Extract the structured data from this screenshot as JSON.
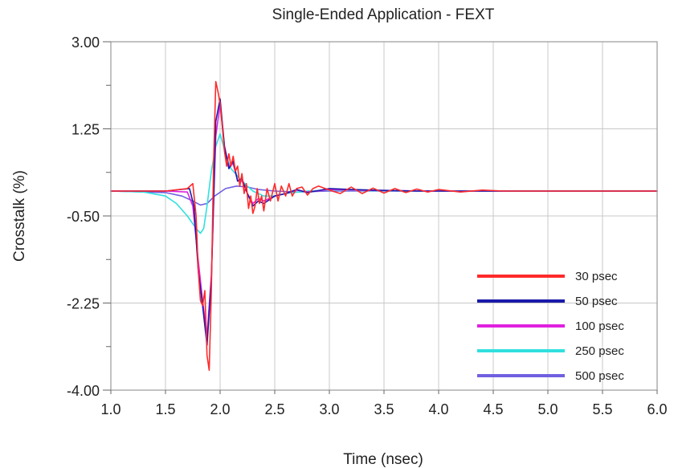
{
  "chart_data": {
    "type": "line",
    "title": "Single-Ended Application - FEXT",
    "xlabel": "Time (nsec)",
    "ylabel": "Crosstalk (%)",
    "xlim": [
      1.0,
      6.0
    ],
    "ylim": [
      -4.0,
      3.0
    ],
    "xticks": [
      "1.0",
      "1.5",
      "2.0",
      "2.5",
      "3.0",
      "3.5",
      "4.0",
      "4.5",
      "5.0",
      "5.5",
      "6.0"
    ],
    "yticks": [
      "3.00",
      "1.25",
      "-0.50",
      "-2.25",
      "-4.00"
    ],
    "grid": true,
    "legend_position": "bottom-right",
    "series": [
      {
        "name": "30 psec",
        "color": "#ff2a2a",
        "x": [
          1.0,
          1.5,
          1.7,
          1.75,
          1.78,
          1.8,
          1.82,
          1.84,
          1.86,
          1.88,
          1.9,
          1.92,
          1.94,
          1.96,
          1.98,
          2.0,
          2.02,
          2.04,
          2.06,
          2.08,
          2.1,
          2.12,
          2.14,
          2.16,
          2.18,
          2.2,
          2.22,
          2.24,
          2.26,
          2.28,
          2.3,
          2.32,
          2.34,
          2.36,
          2.38,
          2.4,
          2.43,
          2.46,
          2.5,
          2.53,
          2.56,
          2.6,
          2.63,
          2.66,
          2.7,
          2.75,
          2.8,
          2.85,
          2.9,
          3.0,
          3.1,
          3.2,
          3.3,
          3.4,
          3.5,
          3.6,
          3.7,
          3.8,
          3.9,
          4.0,
          4.2,
          4.4,
          4.6,
          5.0,
          5.5,
          6.0
        ],
        "y": [
          0.0,
          0.0,
          0.05,
          0.15,
          -0.5,
          -1.6,
          -2.2,
          -2.3,
          -2.0,
          -3.3,
          -3.6,
          -2.0,
          0.5,
          2.2,
          2.0,
          1.75,
          1.3,
          0.8,
          0.5,
          0.75,
          0.5,
          0.7,
          0.4,
          0.5,
          0.1,
          0.35,
          -0.05,
          0.15,
          -0.35,
          -0.1,
          -0.45,
          -0.3,
          0.05,
          -0.25,
          -0.1,
          -0.4,
          0.05,
          -0.2,
          0.15,
          -0.2,
          0.1,
          -0.1,
          0.15,
          -0.1,
          0.05,
          0.08,
          -0.08,
          0.05,
          0.1,
          0.02,
          -0.05,
          0.08,
          -0.05,
          0.06,
          -0.04,
          0.05,
          -0.03,
          0.04,
          -0.02,
          0.03,
          -0.02,
          0.02,
          0.0,
          0.0,
          0.0,
          0.0
        ]
      },
      {
        "name": "50 psec",
        "color": "#1a1aaa",
        "x": [
          1.0,
          1.5,
          1.72,
          1.76,
          1.8,
          1.84,
          1.88,
          1.92,
          1.96,
          2.0,
          2.04,
          2.08,
          2.12,
          2.16,
          2.2,
          2.25,
          2.3,
          2.35,
          2.4,
          2.5,
          2.6,
          2.7,
          2.8,
          3.0,
          3.2,
          3.4,
          3.6,
          3.8,
          4.0,
          4.5,
          5.0,
          6.0
        ],
        "y": [
          0.0,
          0.0,
          0.05,
          -0.3,
          -1.6,
          -2.3,
          -3.1,
          -1.8,
          1.4,
          1.85,
          0.9,
          0.45,
          0.6,
          0.2,
          0.25,
          -0.05,
          -0.3,
          -0.2,
          -0.25,
          -0.1,
          -0.05,
          0.03,
          -0.03,
          0.05,
          0.03,
          0.02,
          0.01,
          0.0,
          0.0,
          0.0,
          0.0,
          0.0
        ]
      },
      {
        "name": "100 psec",
        "color": "#e020e0",
        "x": [
          1.0,
          1.5,
          1.7,
          1.75,
          1.8,
          1.84,
          1.88,
          1.92,
          1.96,
          2.0,
          2.04,
          2.08,
          2.12,
          2.16,
          2.2,
          2.25,
          2.3,
          2.35,
          2.4,
          2.5,
          2.6,
          2.7,
          2.8,
          3.0,
          3.2,
          3.5,
          4.0,
          5.0,
          6.0
        ],
        "y": [
          0.0,
          0.0,
          -0.02,
          -0.3,
          -1.4,
          -2.2,
          -2.9,
          -1.7,
          1.1,
          1.75,
          0.9,
          0.5,
          0.55,
          0.2,
          0.2,
          -0.05,
          -0.25,
          -0.15,
          -0.2,
          -0.1,
          -0.05,
          0.02,
          -0.02,
          0.03,
          0.02,
          0.01,
          0.0,
          0.0,
          0.0
        ]
      },
      {
        "name": "250 psec",
        "color": "#30e0e0",
        "x": [
          1.0,
          1.3,
          1.5,
          1.6,
          1.7,
          1.78,
          1.82,
          1.85,
          1.88,
          1.92,
          1.96,
          2.0,
          2.05,
          2.1,
          2.2,
          2.3,
          2.4,
          2.5,
          2.6,
          2.8,
          3.0,
          3.5,
          4.0,
          5.0,
          6.0
        ],
        "y": [
          0.0,
          -0.02,
          -0.1,
          -0.25,
          -0.5,
          -0.75,
          -0.85,
          -0.75,
          -0.3,
          0.4,
          0.9,
          1.15,
          0.75,
          0.45,
          0.2,
          0.0,
          -0.1,
          -0.1,
          -0.05,
          0.0,
          0.02,
          0.0,
          0.0,
          0.0,
          0.0
        ]
      },
      {
        "name": "500 psec",
        "color": "#7060e0",
        "x": [
          1.0,
          1.5,
          1.65,
          1.75,
          1.82,
          1.88,
          1.95,
          2.05,
          2.15,
          2.25,
          2.35,
          2.5,
          2.7,
          3.0,
          3.5,
          4.0,
          5.0,
          6.0
        ],
        "y": [
          0.0,
          -0.03,
          -0.1,
          -0.2,
          -0.28,
          -0.25,
          -0.1,
          0.05,
          0.1,
          0.08,
          0.03,
          0.0,
          -0.02,
          0.0,
          0.0,
          0.0,
          0.0,
          0.0
        ]
      }
    ]
  }
}
